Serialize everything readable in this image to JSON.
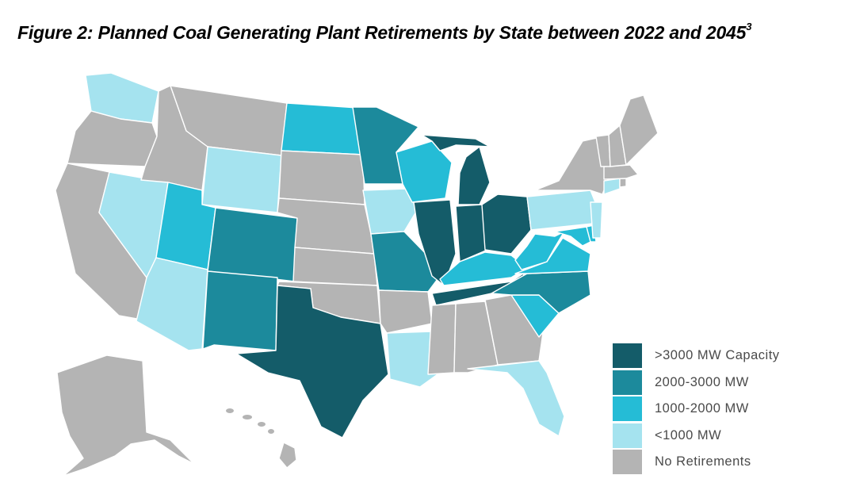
{
  "title": "Figure 2: Planned Coal Generating Plant Retirements by State between 2022 and 2045",
  "title_footnote": "3",
  "colors": {
    "gt3000": "#145c69",
    "r2000_3000": "#1c8a9c",
    "r1000_2000": "#25bcd6",
    "lt1000": "#a5e3ef",
    "none": "#b4b4b4"
  },
  "legend": [
    {
      "key": "gt3000",
      "label": ">3000 MW Capacity"
    },
    {
      "key": "r2000_3000",
      "label": "2000-3000 MW"
    },
    {
      "key": "r1000_2000",
      "label": "1000-2000 MW"
    },
    {
      "key": "lt1000",
      "label": "<1000 MW"
    },
    {
      "key": "none",
      "label": "No Retirements"
    }
  ],
  "states": {
    "WA": "lt1000",
    "OR": "none",
    "CA": "none",
    "NV": "lt1000",
    "ID": "none",
    "MT": "none",
    "WY": "lt1000",
    "UT": "r1000_2000",
    "AZ": "lt1000",
    "CO": "r2000_3000",
    "NM": "r2000_3000",
    "ND": "r1000_2000",
    "SD": "none",
    "NE": "none",
    "KS": "none",
    "OK": "none",
    "TX": "gt3000",
    "MN": "r2000_3000",
    "IA": "lt1000",
    "MO": "r2000_3000",
    "AR": "none",
    "LA": "lt1000",
    "WI": "r1000_2000",
    "IL": "gt3000",
    "MI": "gt3000",
    "IN": "gt3000",
    "OH": "gt3000",
    "KY": "r1000_2000",
    "TN": "gt3000",
    "MS": "none",
    "AL": "none",
    "GA": "none",
    "FL": "lt1000",
    "SC": "r1000_2000",
    "NC": "r2000_3000",
    "VA": "r1000_2000",
    "WV": "r1000_2000",
    "MD": "r1000_2000",
    "DE": "r1000_2000",
    "PA": "lt1000",
    "NJ": "lt1000",
    "NY": "none",
    "CT": "lt1000",
    "RI": "none",
    "MA": "none",
    "VT": "none",
    "NH": "none",
    "ME": "none",
    "AK": "none",
    "HI": "none"
  }
}
